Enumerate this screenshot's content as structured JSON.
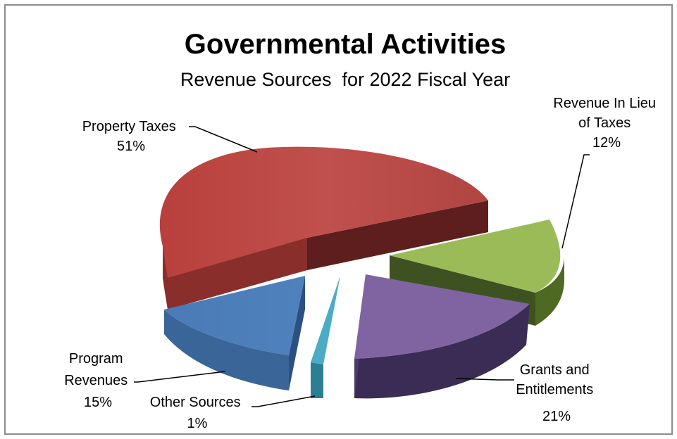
{
  "chart_data": {
    "type": "pie",
    "title": "Governmental Activities",
    "subtitle": "Revenue Sources  for 2022 Fiscal Year",
    "slices": [
      {
        "label_lines": [
          "Property Taxes"
        ],
        "percent_label": "51%",
        "value": 51,
        "color": "#c0504d"
      },
      {
        "label_lines": [
          "Revenue In Lieu",
          "of Taxes"
        ],
        "percent_label": "12%",
        "value": 12,
        "color": "#9bbb59"
      },
      {
        "label_lines": [
          "Grants and",
          "Entitlements"
        ],
        "percent_label": "21%",
        "value": 21,
        "color": "#8064a2"
      },
      {
        "label_lines": [
          "Other Sources"
        ],
        "percent_label": "1%",
        "value": 1,
        "color": "#4bacc6"
      },
      {
        "label_lines": [
          "Program",
          "Revenues"
        ],
        "percent_label": "15%",
        "value": 15,
        "color": "#4f81bd"
      }
    ]
  }
}
